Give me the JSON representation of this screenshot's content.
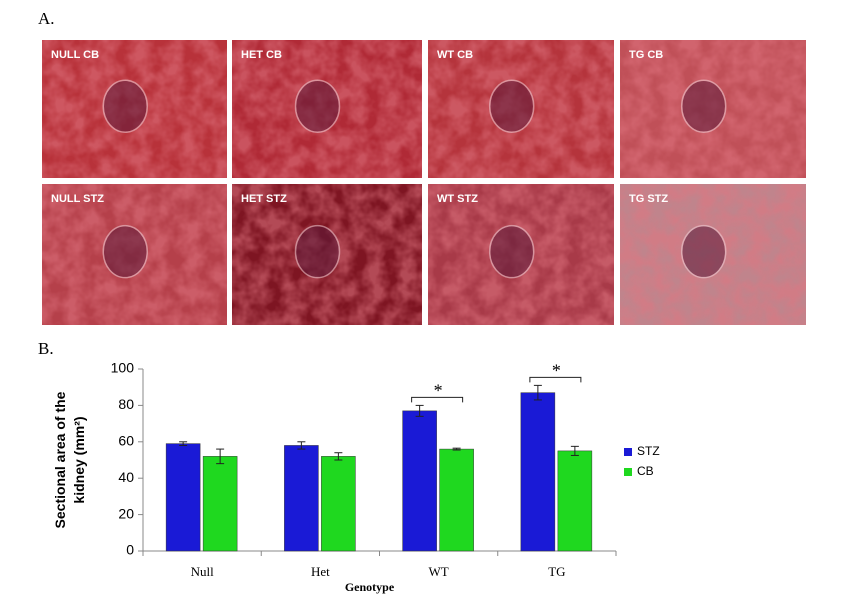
{
  "panel_a": {
    "label": "A.",
    "images": [
      "NULL CB",
      "HET CB",
      "WT CB",
      "TG CB",
      "NULL STZ",
      "HET STZ",
      "WT STZ",
      "TG STZ"
    ]
  },
  "chart_data": {
    "type": "bar",
    "panel_label": "B.",
    "y_label": [
      "Sectional area of the",
      "kidney (mm²)"
    ],
    "x_label": "Genotype",
    "categories": [
      "Null",
      "Het",
      "WT",
      "TG"
    ],
    "series": [
      {
        "name": "STZ",
        "color": "#1a1ad6",
        "values": [
          59,
          58,
          77,
          87
        ],
        "errors": [
          1,
          2,
          3,
          4
        ]
      },
      {
        "name": "CB",
        "color": "#1fd81f",
        "values": [
          52,
          52,
          56,
          55
        ],
        "errors": [
          4,
          2,
          0.5,
          2.5
        ]
      }
    ],
    "ylim": [
      0,
      100
    ],
    "yticks": [
      0,
      20,
      40,
      60,
      80,
      100
    ],
    "annotations": [
      {
        "text": "*",
        "x": "WT"
      },
      {
        "text": "*",
        "x": "TG"
      }
    ],
    "legend": "right"
  }
}
